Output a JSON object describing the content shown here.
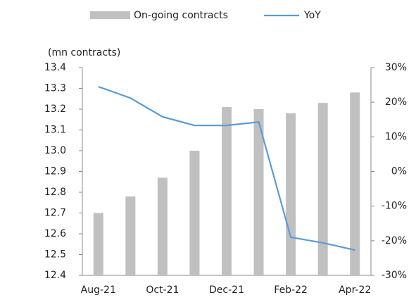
{
  "chart_data": {
    "type": "bar_line",
    "y_axis_label": "(mn contracts)",
    "categories": [
      "Aug-21",
      null,
      "Oct-21",
      null,
      "Dec-21",
      null,
      "Feb-22",
      null,
      "Apr-22"
    ],
    "series": [
      {
        "name": "On-going contracts",
        "type": "bar",
        "color": "#c0c0c0",
        "axis": "y",
        "values": [
          12.7,
          12.78,
          12.87,
          13.0,
          13.21,
          13.2,
          13.18,
          13.23,
          13.28
        ]
      },
      {
        "name": "YoY",
        "type": "line",
        "color": "#5b9bd5",
        "axis": "y2",
        "values": [
          24.5,
          21.2,
          15.8,
          13.3,
          13.3,
          14.3,
          -19.0,
          -20.6,
          -22.7
        ]
      }
    ],
    "ylim": [
      12.4,
      13.4
    ],
    "yticks": [
      12.4,
      12.5,
      12.6,
      12.7,
      12.8,
      12.9,
      {
        "value": 13,
        "label": "13.0"
      },
      13.1,
      13.2,
      13.3,
      13.4
    ],
    "y2lim": [
      -30,
      30
    ],
    "y2ticks": [
      {
        "value": -30,
        "label": "-30%"
      },
      {
        "value": -20,
        "label": "-20%"
      },
      {
        "value": -10,
        "label": "-10%"
      },
      {
        "value": 0,
        "label": "0%"
      },
      {
        "value": 10,
        "label": "10%"
      },
      {
        "value": 20,
        "label": "20%"
      },
      {
        "value": 30,
        "label": "30%"
      }
    ],
    "legend": "top",
    "grid": false
  }
}
